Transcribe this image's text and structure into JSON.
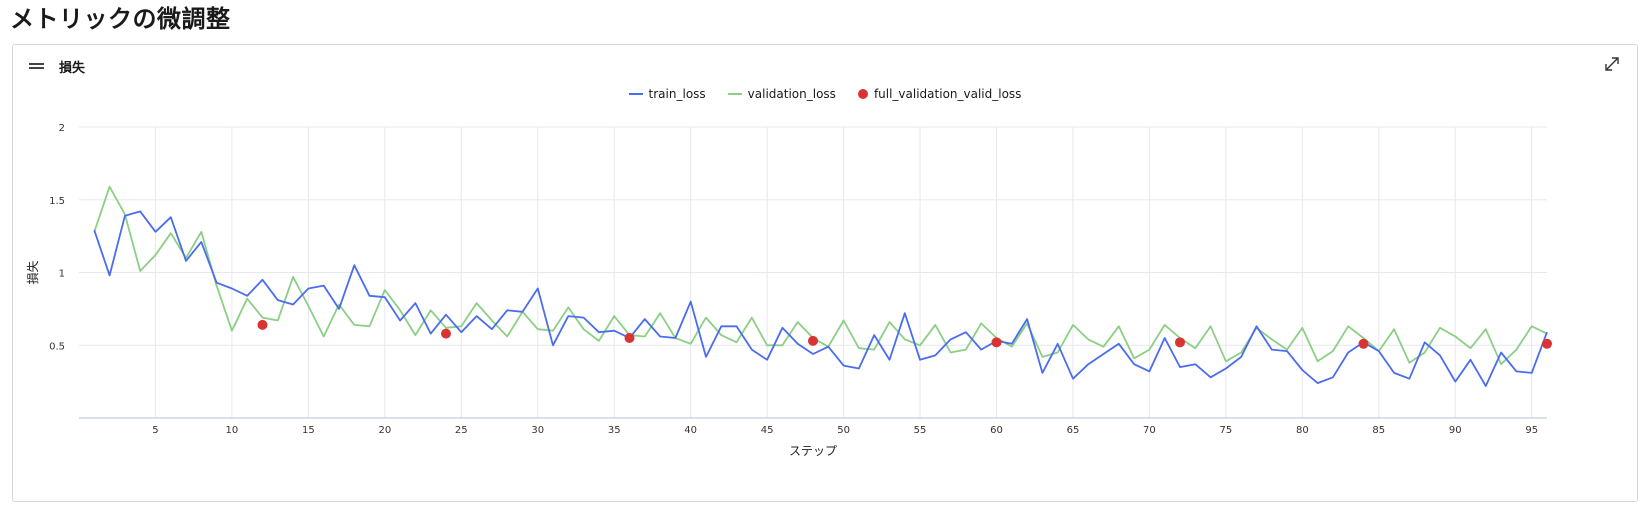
{
  "page": {
    "title": "メトリックの微調整"
  },
  "card": {
    "title": "損失",
    "menu_icon": "hamburger-icon",
    "expand_icon": "expand-icon"
  },
  "colors": {
    "train_loss": "#4a6cf0",
    "validation_loss": "#8ccf84",
    "full_validation_valid_loss": "#d93434",
    "grid": "#e6e8ee"
  },
  "chart_data": {
    "type": "line",
    "title": "損失",
    "xlabel": "ステップ",
    "ylabel": "損失",
    "xlim": [
      0,
      96
    ],
    "ylim": [
      0,
      2
    ],
    "x_ticks": [
      5,
      10,
      15,
      20,
      25,
      30,
      35,
      40,
      45,
      50,
      55,
      60,
      65,
      70,
      75,
      80,
      85,
      90,
      95
    ],
    "y_ticks": [
      0.5,
      1,
      1.5,
      2
    ],
    "y_tick_labels": [
      "0.5",
      "1",
      "1.5",
      "2"
    ],
    "grid": true,
    "legend_position": "top-center",
    "series": [
      {
        "name": "train_loss",
        "style": "line",
        "x": [
          1,
          2,
          3,
          4,
          5,
          6,
          7,
          8,
          9,
          10,
          11,
          12,
          13,
          14,
          15,
          16,
          17,
          18,
          19,
          20,
          21,
          22,
          23,
          24,
          25,
          26,
          27,
          28,
          29,
          30,
          31,
          32,
          33,
          34,
          35,
          36,
          37,
          38,
          39,
          40,
          41,
          42,
          43,
          44,
          45,
          46,
          47,
          48,
          49,
          50,
          51,
          52,
          53,
          54,
          55,
          56,
          57,
          58,
          59,
          60,
          61,
          62,
          63,
          64,
          65,
          66,
          67,
          68,
          69,
          70,
          71,
          72,
          73,
          74,
          75,
          76,
          77,
          78,
          79,
          80,
          81,
          82,
          83,
          84,
          85,
          86,
          87,
          88,
          89,
          90,
          91,
          92,
          93,
          94,
          95,
          96
        ],
        "values": [
          1.29,
          0.98,
          1.39,
          1.42,
          1.28,
          1.38,
          1.08,
          1.21,
          0.93,
          0.89,
          0.84,
          0.95,
          0.81,
          0.78,
          0.89,
          0.91,
          0.75,
          1.05,
          0.84,
          0.83,
          0.67,
          0.79,
          0.58,
          0.71,
          0.59,
          0.7,
          0.61,
          0.74,
          0.73,
          0.89,
          0.5,
          0.7,
          0.69,
          0.59,
          0.6,
          0.55,
          0.68,
          0.56,
          0.55,
          0.8,
          0.42,
          0.63,
          0.63,
          0.47,
          0.4,
          0.62,
          0.51,
          0.44,
          0.49,
          0.36,
          0.34,
          0.57,
          0.4,
          0.72,
          0.4,
          0.43,
          0.54,
          0.59,
          0.47,
          0.53,
          0.51,
          0.68,
          0.31,
          0.51,
          0.27,
          0.37,
          0.44,
          0.51,
          0.37,
          0.32,
          0.55,
          0.35,
          0.37,
          0.28,
          0.34,
          0.42,
          0.63,
          0.47,
          0.46,
          0.33,
          0.24,
          0.28,
          0.45,
          0.52,
          0.46,
          0.31,
          0.27,
          0.52,
          0.43,
          0.25,
          0.4,
          0.22,
          0.45,
          0.32,
          0.31,
          0.59
        ]
      },
      {
        "name": "validation_loss",
        "style": "line",
        "x": [
          1,
          2,
          3,
          4,
          5,
          6,
          7,
          8,
          9,
          10,
          11,
          12,
          13,
          14,
          15,
          16,
          17,
          18,
          19,
          20,
          21,
          22,
          23,
          24,
          25,
          26,
          27,
          28,
          29,
          30,
          31,
          32,
          33,
          34,
          35,
          36,
          37,
          38,
          39,
          40,
          41,
          42,
          43,
          44,
          45,
          46,
          47,
          48,
          49,
          50,
          51,
          52,
          53,
          54,
          55,
          56,
          57,
          58,
          59,
          60,
          61,
          62,
          63,
          64,
          65,
          66,
          67,
          68,
          69,
          70,
          71,
          72,
          73,
          74,
          75,
          76,
          77,
          78,
          79,
          80,
          81,
          82,
          83,
          84,
          85,
          86,
          87,
          88,
          89,
          90,
          91,
          92,
          93,
          94,
          95,
          96
        ],
        "values": [
          1.28,
          1.59,
          1.4,
          1.01,
          1.12,
          1.27,
          1.1,
          1.28,
          0.91,
          0.6,
          0.82,
          0.69,
          0.67,
          0.97,
          0.77,
          0.56,
          0.78,
          0.64,
          0.63,
          0.88,
          0.74,
          0.57,
          0.74,
          0.62,
          0.63,
          0.79,
          0.67,
          0.56,
          0.73,
          0.61,
          0.6,
          0.76,
          0.61,
          0.53,
          0.7,
          0.57,
          0.56,
          0.72,
          0.55,
          0.51,
          0.69,
          0.57,
          0.52,
          0.69,
          0.5,
          0.5,
          0.66,
          0.55,
          0.49,
          0.67,
          0.48,
          0.47,
          0.66,
          0.54,
          0.5,
          0.64,
          0.45,
          0.47,
          0.65,
          0.55,
          0.49,
          0.65,
          0.42,
          0.45,
          0.64,
          0.54,
          0.49,
          0.63,
          0.41,
          0.47,
          0.64,
          0.55,
          0.48,
          0.63,
          0.39,
          0.45,
          0.62,
          0.54,
          0.47,
          0.62,
          0.39,
          0.46,
          0.63,
          0.55,
          0.46,
          0.61,
          0.38,
          0.45,
          0.62,
          0.56,
          0.48,
          0.61,
          0.37,
          0.47,
          0.63,
          0.58
        ]
      },
      {
        "name": "full_validation_valid_loss",
        "style": "scatter",
        "x": [
          12,
          24,
          36,
          48,
          60,
          72,
          84,
          96
        ],
        "values": [
          0.64,
          0.58,
          0.55,
          0.53,
          0.52,
          0.52,
          0.51,
          0.51
        ]
      }
    ]
  }
}
